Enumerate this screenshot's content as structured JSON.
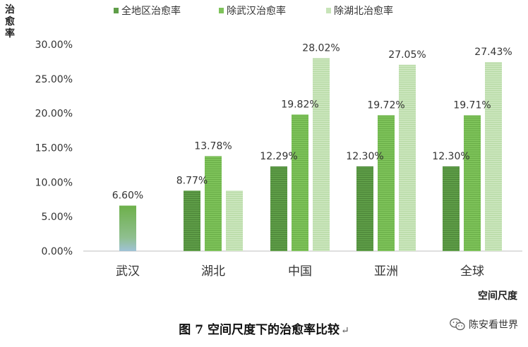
{
  "chart_data": {
    "type": "bar",
    "title": "",
    "xlabel": "空间尺度",
    "ylabel": "治愈率",
    "categories": [
      "武汉",
      "湖北",
      "中国",
      "亚洲",
      "全球"
    ],
    "series": [
      {
        "name": "全地区治愈率",
        "values": [
          6.6,
          8.77,
          12.29,
          12.3,
          12.3
        ],
        "labels": [
          "6.60%",
          "8.77%",
          "12.29%",
          "12.30%",
          "12.30%"
        ],
        "color": "#5f9e48"
      },
      {
        "name": "除武汉治愈率",
        "values": [
          null,
          13.78,
          19.82,
          19.72,
          19.71
        ],
        "labels": [
          "",
          "13.78%",
          "19.82%",
          "19.72%",
          "19.71%"
        ],
        "color": "#7ec35a"
      },
      {
        "name": "除湖北治愈率",
        "values": [
          null,
          8.77,
          28.02,
          27.05,
          27.43
        ],
        "labels": [
          "",
          "",
          "28.02%",
          "27.05%",
          "27.43%"
        ],
        "color": "#c7e4b8"
      }
    ],
    "ylim": [
      0,
      30
    ],
    "yticks": [
      "0.00%",
      "5.00%",
      "10.00%",
      "15.00%",
      "20.00%",
      "25.00%",
      "30.00%"
    ],
    "legend_position": "top",
    "grid": false
  },
  "caption": {
    "text": "图 7  空间尺度下的治愈率比较",
    "mark": "↵"
  },
  "watermark": {
    "text": "陈安看世界",
    "icon": "wechat-icon"
  }
}
